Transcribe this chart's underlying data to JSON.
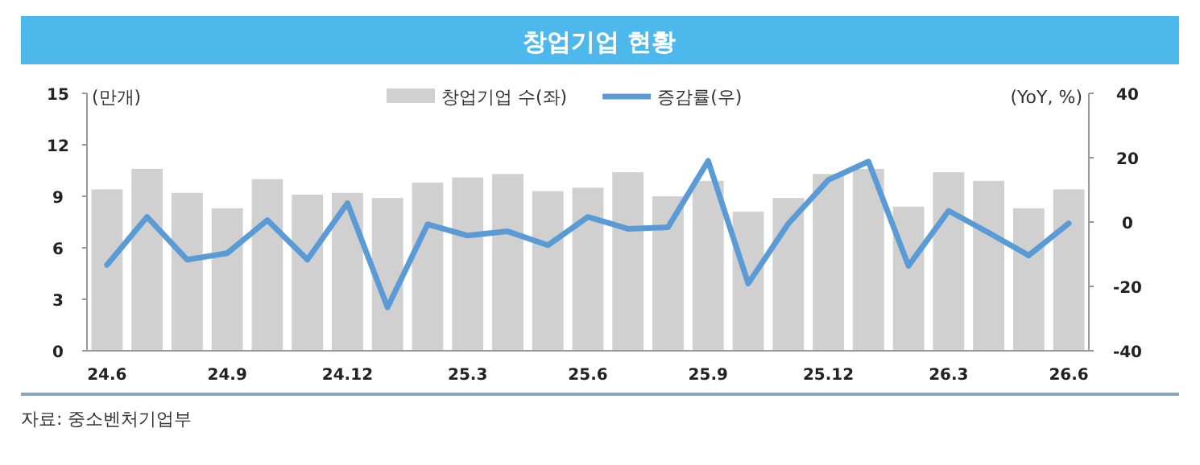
{
  "chart_data": {
    "type": "bar",
    "title": "창업기업 현황",
    "categories": [
      "24.6",
      null,
      null,
      "24.9",
      null,
      null,
      "24.12",
      null,
      null,
      "25.3",
      null,
      null,
      "25.6",
      null,
      null,
      "25.9",
      null,
      null,
      "25.12",
      null,
      null,
      "26.3",
      null,
      null,
      "26.6"
    ],
    "series": [
      {
        "name": "창업기업 수(좌)",
        "color": "#d0d0d0",
        "values": [
          9.4,
          10.6,
          9.2,
          8.3,
          10.0,
          9.1,
          9.2,
          8.9,
          9.8,
          10.1,
          10.3,
          9.3,
          9.5,
          10.4,
          9.0,
          9.9,
          8.1,
          8.9,
          10.3,
          10.6,
          8.4,
          10.4,
          9.9,
          8.3,
          9.4
        ]
      },
      {
        "name": "증감률(우)",
        "type": "line",
        "axis": "y2",
        "color": "#5b9bd5",
        "values": [
          -13.3,
          1.6,
          -11.7,
          -9.7,
          0.6,
          -11.7,
          5.9,
          -26.5,
          -0.7,
          -4.2,
          -2.9,
          -7.2,
          1.6,
          -2.1,
          -1.6,
          19.0,
          -19.1,
          -0.5,
          13.1,
          18.8,
          -13.6,
          3.5,
          -3.3,
          -10.4,
          -0.4
        ]
      }
    ],
    "ylabel": "(만개)",
    "y2label": "(YoY, %)",
    "ylim": [
      0,
      15
    ],
    "yticks": [
      0,
      3,
      6,
      9,
      12,
      15
    ],
    "y2lim": [
      -40,
      40
    ],
    "y2ticks": [
      -40,
      -20,
      0,
      20,
      40
    ],
    "legend": "top",
    "annotations": [
      "자료: 중소벤처기업부"
    ]
  }
}
